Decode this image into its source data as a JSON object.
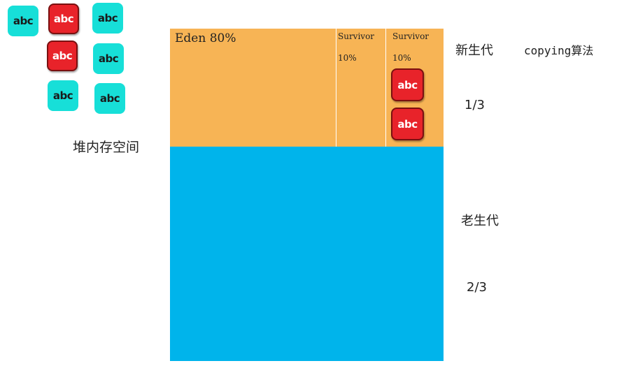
{
  "objects": [
    {
      "color": "teal",
      "text": "abc"
    },
    {
      "color": "red",
      "text": "abc"
    },
    {
      "color": "teal",
      "text": "abc"
    },
    {
      "color": "red",
      "text": "abc"
    },
    {
      "color": "teal",
      "text": "abc"
    },
    {
      "color": "teal",
      "text": "abc"
    },
    {
      "color": "teal",
      "text": "abc"
    }
  ],
  "heap_label": "堆内存空间",
  "eden": {
    "label": "Eden 80%"
  },
  "survivor_from": {
    "name": "Survivor",
    "percent": "10%"
  },
  "survivor_to": {
    "name": "Survivor",
    "percent": "10%"
  },
  "survivor_objects": [
    {
      "color": "red",
      "text": "abc"
    },
    {
      "color": "red",
      "text": "abc"
    }
  ],
  "young_gen": {
    "label": "新生代",
    "ratio": "1/3",
    "algorithm": "copying算法"
  },
  "old_gen": {
    "label": "老生代",
    "ratio": "2/3"
  },
  "colors": {
    "young": "#f7b455",
    "old": "#00b4eb",
    "teal_object": "#17dfd8",
    "red_object": "#e8232a"
  }
}
